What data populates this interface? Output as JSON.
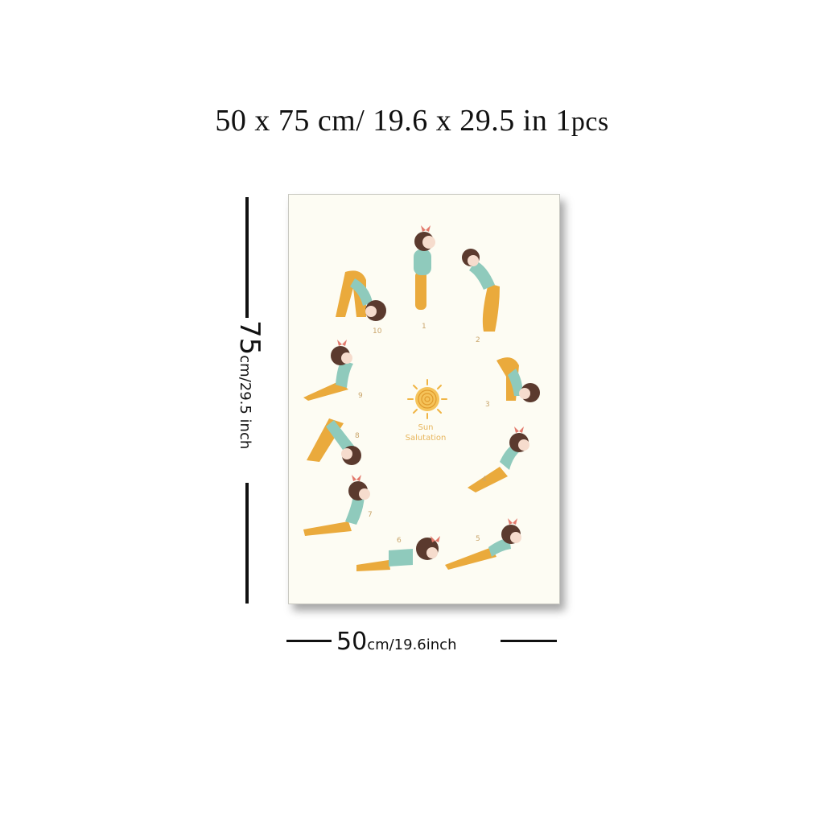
{
  "header": {
    "size_text": "50 x 75 cm/ 19.6  x  29.5 in",
    "pcs_count": "1",
    "pcs_label": "pcs"
  },
  "poster": {
    "title_line1": "Sun",
    "title_line2": "Salutation",
    "pose_numbers": [
      "1",
      "2",
      "3",
      "4",
      "5",
      "6",
      "7",
      "8",
      "9",
      "10"
    ],
    "colors": {
      "background": "#fdfcf3",
      "shirt": "#8fcabc",
      "pants": "#eaaa3c",
      "hair": "#5b3a2e",
      "bow": "#e27a6d",
      "sun": "#f0b545"
    }
  },
  "dimensions": {
    "height_value": "75",
    "height_unit": "cm/29.5 inch",
    "width_value": "50",
    "width_unit": "cm/19.6inch"
  }
}
